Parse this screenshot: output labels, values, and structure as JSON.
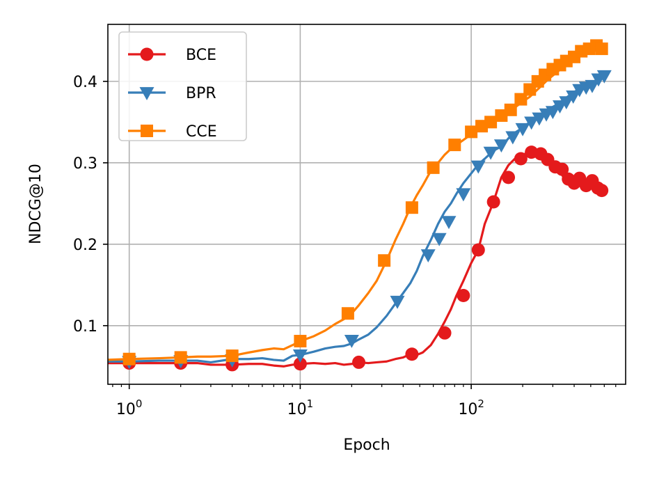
{
  "chart_data": {
    "type": "line",
    "xlabel": "Epoch",
    "ylabel": "NDCG@10",
    "xscale": "log",
    "xlim": [
      0.75,
      800
    ],
    "ylim": [
      0.028,
      0.47
    ],
    "grid": true,
    "legend_position": "top-left",
    "x_ticks": [
      {
        "value": 1,
        "base": "10",
        "exp": "0"
      },
      {
        "value": 10,
        "base": "10",
        "exp": "1"
      },
      {
        "value": 100,
        "base": "10",
        "exp": "2"
      }
    ],
    "y_ticks": [
      {
        "value": 0.1,
        "label": "0.1"
      },
      {
        "value": 0.2,
        "label": "0.2"
      },
      {
        "value": 0.3,
        "label": "0.3"
      },
      {
        "value": 0.4,
        "label": "0.4"
      }
    ],
    "series": [
      {
        "name": "BCE",
        "color": "#e41a1c",
        "marker": "circle",
        "x": [
          0.75,
          1,
          1.5,
          2,
          2.5,
          3,
          4,
          5,
          6,
          7,
          8,
          9,
          10,
          12,
          14,
          16,
          18,
          20,
          22,
          25,
          28,
          32,
          36,
          40,
          44,
          48,
          52,
          58,
          64,
          70,
          76,
          82,
          90,
          100,
          110,
          120,
          135,
          150,
          165,
          180,
          200,
          220,
          240,
          265,
          290,
          320,
          350,
          380,
          410,
          440,
          480,
          520,
          560
        ],
        "y": [
          0.054,
          0.054,
          0.054,
          0.054,
          0.054,
          0.052,
          0.052,
          0.053,
          0.053,
          0.051,
          0.05,
          0.052,
          0.053,
          0.054,
          0.053,
          0.054,
          0.052,
          0.053,
          0.055,
          0.054,
          0.055,
          0.056,
          0.059,
          0.061,
          0.065,
          0.064,
          0.067,
          0.076,
          0.09,
          0.105,
          0.12,
          0.137,
          0.155,
          0.177,
          0.193,
          0.225,
          0.252,
          0.282,
          0.297,
          0.305,
          0.31,
          0.313,
          0.31,
          0.304,
          0.297,
          0.293,
          0.281,
          0.275,
          0.279,
          0.272,
          0.278,
          0.269,
          0.266
        ],
        "marker_x": [
          1,
          2,
          4,
          10,
          22,
          45,
          70,
          90,
          110,
          135,
          165,
          195,
          225,
          255,
          280,
          310,
          340,
          370,
          400,
          430,
          470,
          510,
          550,
          580
        ],
        "marker_y": [
          0.054,
          0.054,
          0.052,
          0.053,
          0.055,
          0.065,
          0.091,
          0.137,
          0.193,
          0.252,
          0.282,
          0.305,
          0.313,
          0.311,
          0.304,
          0.295,
          0.292,
          0.28,
          0.275,
          0.281,
          0.272,
          0.278,
          0.269,
          0.266
        ]
      },
      {
        "name": "BPR",
        "color": "#377eb8",
        "marker": "triangle-down",
        "x": [
          0.75,
          1,
          1.5,
          2,
          2.5,
          3,
          4,
          5,
          6,
          7,
          8,
          9,
          10,
          12,
          14,
          16,
          18,
          20,
          22,
          25,
          28,
          32,
          36,
          40,
          44,
          48,
          52,
          58,
          64,
          70,
          76,
          82,
          90,
          100,
          110,
          120,
          135,
          150,
          165,
          180,
          200,
          220,
          250,
          280,
          320,
          360,
          400,
          450,
          500,
          560,
          600
        ],
        "y": [
          0.056,
          0.056,
          0.057,
          0.057,
          0.057,
          0.055,
          0.059,
          0.059,
          0.06,
          0.058,
          0.057,
          0.063,
          0.064,
          0.068,
          0.072,
          0.074,
          0.075,
          0.078,
          0.083,
          0.089,
          0.098,
          0.112,
          0.127,
          0.14,
          0.152,
          0.167,
          0.185,
          0.205,
          0.225,
          0.24,
          0.25,
          0.262,
          0.275,
          0.287,
          0.298,
          0.305,
          0.315,
          0.32,
          0.33,
          0.337,
          0.343,
          0.35,
          0.358,
          0.365,
          0.372,
          0.38,
          0.387,
          0.393,
          0.398,
          0.403,
          0.406
        ],
        "marker_x": [
          1,
          2,
          4,
          10,
          20,
          37,
          56,
          65,
          74,
          90,
          110,
          130,
          150,
          175,
          200,
          225,
          250,
          275,
          300,
          330,
          360,
          395,
          430,
          470,
          510,
          555,
          600
        ],
        "marker_y": [
          0.056,
          0.057,
          0.058,
          0.064,
          0.082,
          0.13,
          0.187,
          0.207,
          0.228,
          0.262,
          0.296,
          0.313,
          0.322,
          0.332,
          0.342,
          0.35,
          0.355,
          0.36,
          0.363,
          0.37,
          0.375,
          0.382,
          0.39,
          0.393,
          0.395,
          0.403,
          0.407
        ]
      },
      {
        "name": "CCE",
        "color": "#ff7f00",
        "marker": "square",
        "x": [
          0.75,
          1,
          1.5,
          2,
          2.5,
          3,
          4,
          5,
          6,
          7,
          8,
          9,
          10,
          12,
          14,
          16,
          18,
          20,
          22,
          25,
          28,
          32,
          36,
          40,
          44,
          48,
          52,
          58,
          64,
          70,
          76,
          82,
          90,
          100,
          110,
          120,
          135,
          150,
          165,
          180,
          200,
          220,
          250,
          280,
          320,
          360,
          400,
          450,
          500,
          560,
          600
        ],
        "y": [
          0.058,
          0.059,
          0.06,
          0.061,
          0.062,
          0.062,
          0.063,
          0.067,
          0.07,
          0.072,
          0.071,
          0.076,
          0.081,
          0.087,
          0.094,
          0.102,
          0.108,
          0.115,
          0.125,
          0.14,
          0.155,
          0.18,
          0.205,
          0.225,
          0.245,
          0.26,
          0.272,
          0.29,
          0.3,
          0.31,
          0.317,
          0.322,
          0.328,
          0.335,
          0.34,
          0.343,
          0.35,
          0.356,
          0.362,
          0.368,
          0.375,
          0.381,
          0.392,
          0.402,
          0.412,
          0.42,
          0.427,
          0.433,
          0.438,
          0.441,
          0.441
        ],
        "marker_x": [
          1,
          2,
          4,
          10,
          19,
          31,
          45,
          60,
          80,
          100,
          115,
          130,
          150,
          170,
          195,
          220,
          245,
          270,
          300,
          330,
          360,
          400,
          440,
          490,
          540,
          580
        ],
        "marker_y": [
          0.059,
          0.061,
          0.063,
          0.081,
          0.115,
          0.18,
          0.245,
          0.294,
          0.322,
          0.338,
          0.345,
          0.35,
          0.358,
          0.365,
          0.378,
          0.39,
          0.4,
          0.408,
          0.415,
          0.42,
          0.425,
          0.43,
          0.437,
          0.44,
          0.444,
          0.44
        ]
      }
    ]
  }
}
